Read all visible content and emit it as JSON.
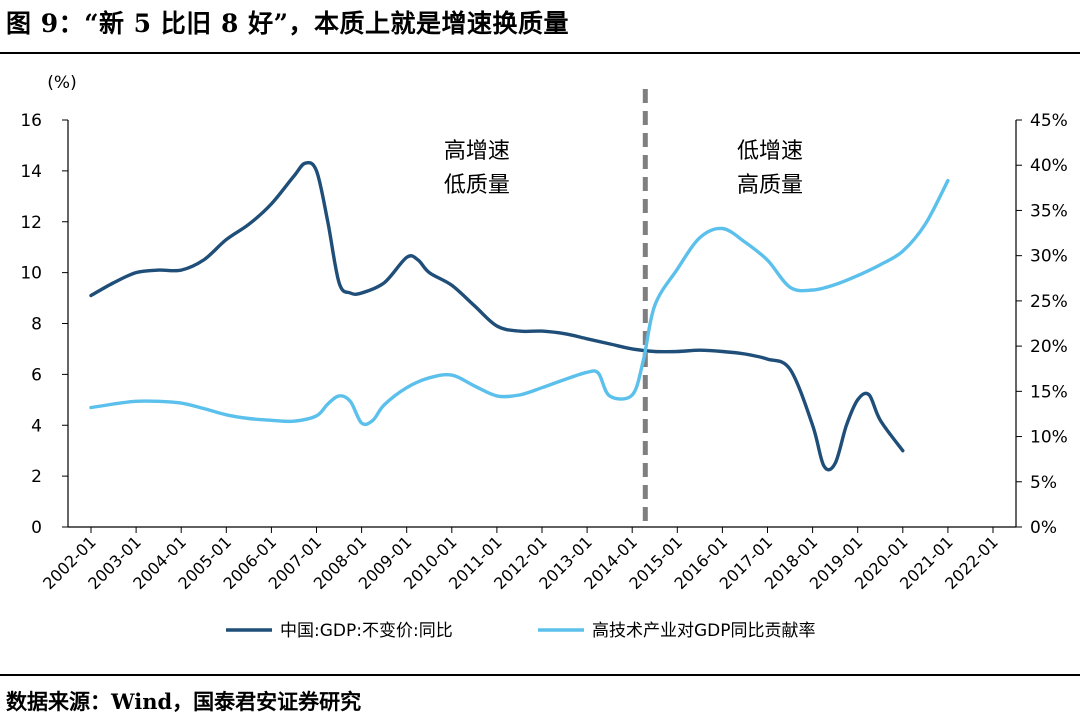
{
  "header": {
    "title": "图 9：“新 5 比旧 8 好”，本质上就是增速换质量"
  },
  "footer": {
    "source": "数据来源：Wind，国泰君安证券研究"
  },
  "chart_data": {
    "type": "line",
    "x": [
      "2002-01",
      "2003-01",
      "2004-01",
      "2005-01",
      "2006-01",
      "2007-01",
      "2008-01",
      "2009-01",
      "2010-01",
      "2011-01",
      "2012-01",
      "2013-01",
      "2014-01",
      "2015-01",
      "2016-01",
      "2017-01",
      "2018-01",
      "2019-01",
      "2020-01",
      "2021-01",
      "2022-01"
    ],
    "left_unit": "(%)",
    "y_left_ticks": [
      "0",
      "2",
      "4",
      "6",
      "8",
      "10",
      "12",
      "14",
      "16"
    ],
    "y_left_range": [
      0,
      16
    ],
    "y_right_ticks": [
      "0%",
      "5%",
      "10%",
      "15%",
      "20%",
      "25%",
      "30%",
      "35%",
      "40%",
      "45%"
    ],
    "y_right_range": [
      0,
      45
    ],
    "divider_at": "2015-01",
    "annotations": [
      {
        "lines": [
          "高增速",
          "低质量"
        ],
        "x": "2011-01",
        "y_left": 14.5
      },
      {
        "lines": [
          "低增速",
          "高质量"
        ],
        "x": "2017-07",
        "y_left": 14.5
      }
    ],
    "series": [
      {
        "name": "中国:GDP:不变价:同比",
        "axis": "left",
        "color": "#1F4E79",
        "points": [
          [
            "2002-01",
            9.1
          ],
          [
            "2002-07",
            9.6
          ],
          [
            "2003-01",
            10.0
          ],
          [
            "2003-07",
            10.1
          ],
          [
            "2004-01",
            10.1
          ],
          [
            "2004-07",
            10.5
          ],
          [
            "2005-01",
            11.3
          ],
          [
            "2005-07",
            11.9
          ],
          [
            "2006-01",
            12.7
          ],
          [
            "2006-07",
            13.8
          ],
          [
            "2006-10",
            14.3
          ],
          [
            "2007-01",
            14.0
          ],
          [
            "2007-04",
            12.0
          ],
          [
            "2007-07",
            9.6
          ],
          [
            "2007-10",
            9.2
          ],
          [
            "2008-01",
            9.2
          ],
          [
            "2008-07",
            9.6
          ],
          [
            "2009-01",
            10.6
          ],
          [
            "2009-04",
            10.5
          ],
          [
            "2009-07",
            10.0
          ],
          [
            "2010-01",
            9.5
          ],
          [
            "2010-07",
            8.7
          ],
          [
            "2011-01",
            7.9
          ],
          [
            "2011-07",
            7.7
          ],
          [
            "2012-01",
            7.7
          ],
          [
            "2012-07",
            7.6
          ],
          [
            "2013-01",
            7.4
          ],
          [
            "2013-07",
            7.2
          ],
          [
            "2014-01",
            7.0
          ],
          [
            "2014-07",
            6.9
          ],
          [
            "2015-01",
            6.9
          ],
          [
            "2015-07",
            6.95
          ],
          [
            "2016-01",
            6.9
          ],
          [
            "2016-07",
            6.8
          ],
          [
            "2017-01",
            6.6
          ],
          [
            "2017-07",
            6.2
          ],
          [
            "2018-01",
            4.0
          ],
          [
            "2018-04",
            2.4
          ],
          [
            "2018-07",
            2.5
          ],
          [
            "2018-10",
            4.0
          ],
          [
            "2019-01",
            5.0
          ],
          [
            "2019-04",
            5.2
          ],
          [
            "2019-07",
            4.2
          ],
          [
            "2020-01",
            3.0
          ]
        ]
      },
      {
        "name": "高技术产业对GDP同比贡献率",
        "axis": "right",
        "color": "#5BC0EB",
        "points": [
          [
            "2002-01",
            13.2
          ],
          [
            "2002-07",
            13.6
          ],
          [
            "2003-01",
            13.9
          ],
          [
            "2003-07",
            13.9
          ],
          [
            "2004-01",
            13.7
          ],
          [
            "2004-07",
            13.1
          ],
          [
            "2005-01",
            12.4
          ],
          [
            "2005-07",
            12.0
          ],
          [
            "2006-01",
            11.8
          ],
          [
            "2006-07",
            11.7
          ],
          [
            "2007-01",
            12.3
          ],
          [
            "2007-04",
            13.6
          ],
          [
            "2007-07",
            14.5
          ],
          [
            "2007-10",
            13.9
          ],
          [
            "2008-01",
            11.5
          ],
          [
            "2008-04",
            11.8
          ],
          [
            "2008-07",
            13.5
          ],
          [
            "2009-01",
            15.4
          ],
          [
            "2009-07",
            16.5
          ],
          [
            "2010-01",
            16.8
          ],
          [
            "2010-07",
            15.6
          ],
          [
            "2011-01",
            14.5
          ],
          [
            "2011-07",
            14.6
          ],
          [
            "2012-01",
            15.4
          ],
          [
            "2012-07",
            16.3
          ],
          [
            "2013-01",
            17.1
          ],
          [
            "2013-04",
            17.0
          ],
          [
            "2013-07",
            14.5
          ],
          [
            "2014-01",
            14.6
          ],
          [
            "2014-04",
            18.5
          ],
          [
            "2014-07",
            24.5
          ],
          [
            "2015-01",
            28.5
          ],
          [
            "2015-07",
            32.0
          ],
          [
            "2016-01",
            33.0
          ],
          [
            "2016-07",
            31.5
          ],
          [
            "2017-01",
            29.5
          ],
          [
            "2017-07",
            26.5
          ],
          [
            "2018-01",
            26.2
          ],
          [
            "2018-07",
            26.8
          ],
          [
            "2019-01",
            27.8
          ],
          [
            "2019-07",
            29.0
          ],
          [
            "2020-01",
            30.5
          ],
          [
            "2020-07",
            33.5
          ],
          [
            "2021-01",
            38.3
          ]
        ]
      }
    ]
  }
}
